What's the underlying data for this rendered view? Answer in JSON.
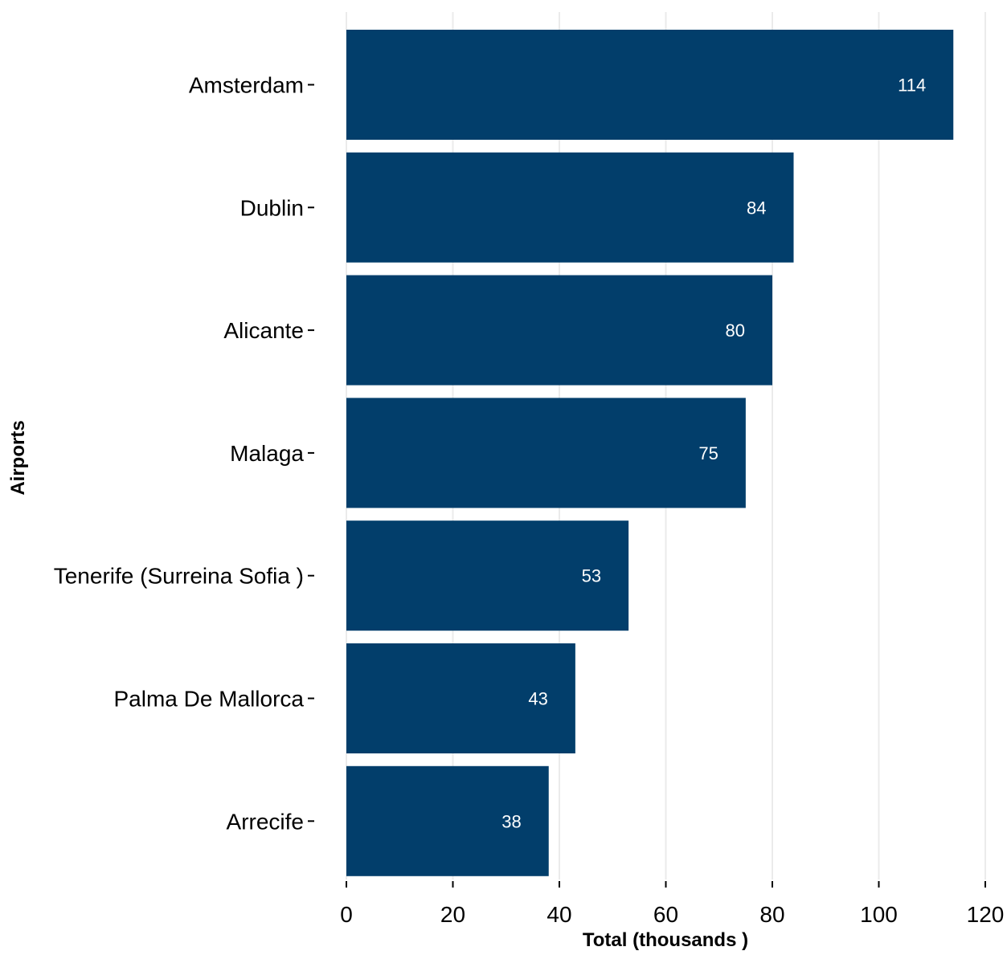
{
  "chart_data": {
    "type": "bar",
    "orientation": "horizontal",
    "categories": [
      "Amsterdam",
      "Dublin",
      "Alicante",
      "Malaga",
      "Tenerife (Surreina Sofia )",
      "Palma De Mallorca",
      "Arrecife"
    ],
    "values": [
      114,
      84,
      80,
      75,
      53,
      43,
      38
    ],
    "data_labels": [
      "114",
      "84",
      "80",
      "75",
      "53",
      "43",
      "38"
    ],
    "xlabel": "Total (thousands )",
    "ylabel": "Airports",
    "xlim": [
      0,
      120
    ],
    "xticks": [
      0,
      20,
      40,
      60,
      80,
      100,
      120
    ],
    "xtick_labels": [
      "0",
      "20",
      "40",
      "60",
      "80",
      "100",
      "120"
    ],
    "grid": "vertical",
    "legend": "none",
    "bar_color": "#023e6b",
    "label_color": "#ffffff",
    "grid_color": "#ebebeb"
  }
}
